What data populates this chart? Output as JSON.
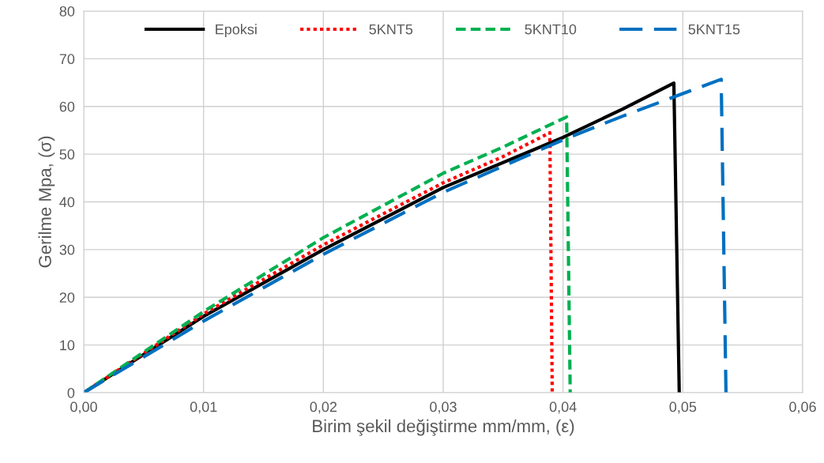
{
  "chart_data": {
    "type": "line",
    "xlabel": "Birim şekil değiştirme mm/mm, (ε)",
    "ylabel": "Gerilme Mpa, (σ)",
    "xlim": [
      0,
      0.06
    ],
    "ylim": [
      0,
      80
    ],
    "xticks": [
      {
        "value": 0,
        "label": "0,00"
      },
      {
        "value": 0.01,
        "label": "0,01"
      },
      {
        "value": 0.02,
        "label": "0,02"
      },
      {
        "value": 0.03,
        "label": "0,03"
      },
      {
        "value": 0.04,
        "label": "0,04"
      },
      {
        "value": 0.05,
        "label": "0,05"
      },
      {
        "value": 0.06,
        "label": "0,06"
      }
    ],
    "yticks": [
      0,
      10,
      20,
      30,
      40,
      50,
      60,
      70,
      80
    ],
    "grid": true,
    "legend": "top",
    "marker": "none",
    "series": [
      {
        "name": "Epoksi",
        "color": "#000000",
        "line_style": "solid",
        "x": [
          0,
          0.01,
          0.02,
          0.03,
          0.04,
          0.045,
          0.04925,
          0.0497
        ],
        "values": [
          0,
          16,
          30,
          43,
          53.5,
          59.5,
          64.9,
          0
        ]
      },
      {
        "name": "5KNT5",
        "color": "#ff0000",
        "line_style": "dotted",
        "x": [
          0,
          0.01,
          0.02,
          0.03,
          0.035,
          0.0389,
          0.0391
        ],
        "values": [
          0,
          16.5,
          31,
          44,
          49.5,
          54.5,
          0
        ]
      },
      {
        "name": "5KNT10",
        "color": "#00b050",
        "line_style": "dashed",
        "x": [
          0,
          0.01,
          0.02,
          0.03,
          0.035,
          0.0403,
          0.0406
        ],
        "values": [
          0,
          17,
          32.5,
          46,
          51.5,
          57.8,
          0
        ]
      },
      {
        "name": "5KNT15",
        "color": "#0070c0",
        "line_style": "longdash",
        "x": [
          0,
          0.01,
          0.02,
          0.03,
          0.04,
          0.045,
          0.0532,
          0.0536
        ],
        "values": [
          0,
          15,
          29,
          42,
          53,
          58,
          65.7,
          0
        ]
      }
    ]
  }
}
